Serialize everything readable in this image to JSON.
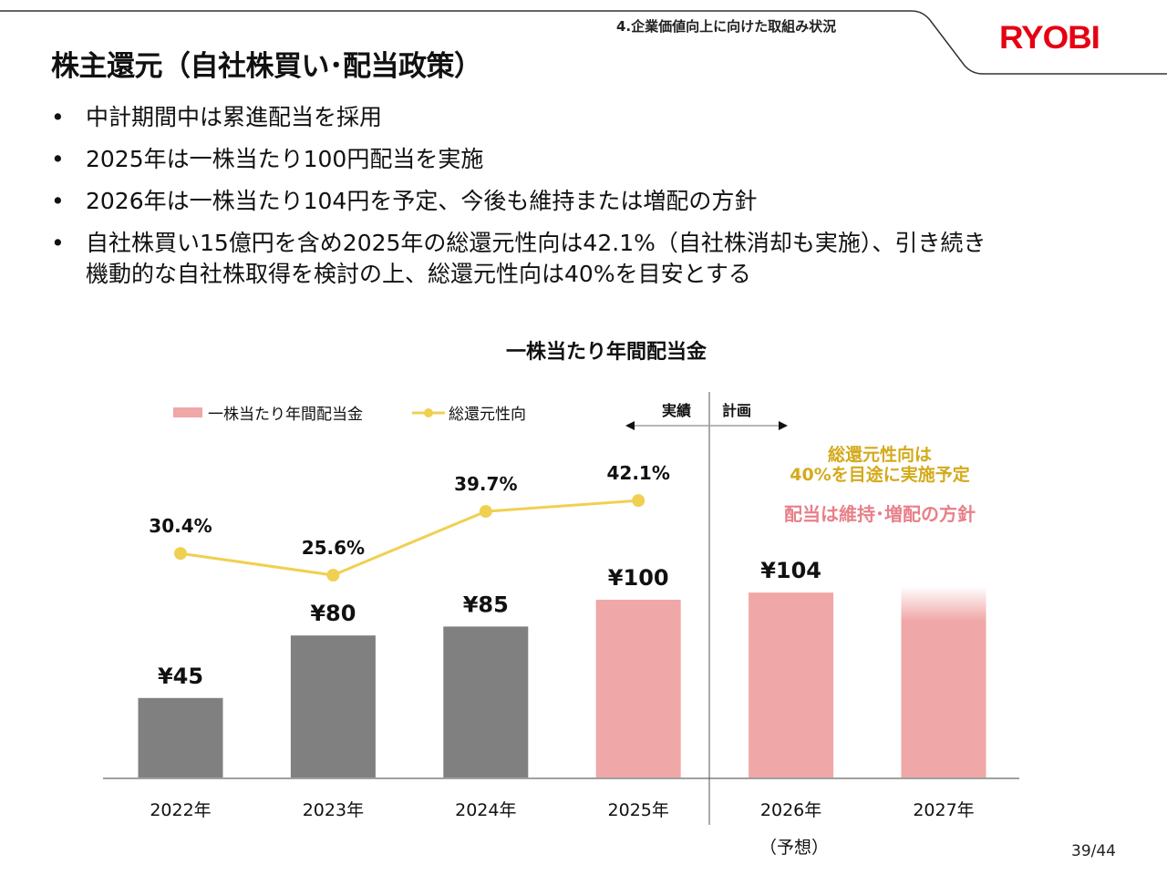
{
  "header": {
    "section_label": "4.企業価値向上に向けた取組み状況",
    "title": "株主還元（自社株買い･配当政策）",
    "logo_text": "RYOBI",
    "logo_color": "#e60012"
  },
  "bullets": [
    {
      "lines": [
        "中計期間中は累進配当を採用"
      ]
    },
    {
      "lines": [
        "2025年は一株当たり100円配当を実施"
      ]
    },
    {
      "lines": [
        "2026年は一株当たり104円を予定、今後も維持または増配の方針"
      ]
    },
    {
      "lines": [
        "自社株買い15億円を含め2025年の総還元性向は42.1%（自社株消却も実施）、引き続き",
        "機動的な自社株取得を検討の上、総還元性向は40%を目安とする"
      ]
    }
  ],
  "bullet_glyph": "•",
  "chart_data": {
    "type": "bar",
    "title": "一株当たり年間配当金",
    "categories": [
      "2022年",
      "2023年",
      "2024年",
      "2025年",
      "2026年",
      "2027年"
    ],
    "series": [
      {
        "name": "一株当たり年間配当金",
        "kind": "bar",
        "unit": "円",
        "values": [
          45,
          80,
          85,
          100,
          104,
          null
        ],
        "labels": [
          "¥45",
          "¥80",
          "¥85",
          "¥100",
          "¥104",
          ""
        ],
        "colors": [
          "#808080",
          "#808080",
          "#808080",
          "#f0a7a7",
          "#f0a7a7",
          "#f0a7a7"
        ],
        "note": "2027年 bar shown faded (planned, no value)"
      },
      {
        "name": "総還元性向",
        "kind": "line",
        "unit": "%",
        "values": [
          30.4,
          25.6,
          39.7,
          42.1,
          null,
          null
        ],
        "labels": [
          "30.4%",
          "25.6%",
          "39.7%",
          "42.1%",
          "",
          ""
        ],
        "color": "#f0d050"
      }
    ],
    "xlabel": "",
    "ylabel": "",
    "ylim": [
      0,
      110
    ],
    "grid": false,
    "legend": "top-left",
    "divider_after_category": "2025年",
    "period_labels": {
      "actual": "実績",
      "plan": "計画"
    },
    "forecast_note": "（予想）",
    "annotations": [
      {
        "text": [
          "総還元性向は",
          "40%を目途に実施予定"
        ],
        "color": "#d4aa1b"
      },
      {
        "text": [
          "配当は維持･増配の方針"
        ],
        "color": "#e8808a"
      }
    ]
  },
  "footer": {
    "page_number": "39/44"
  }
}
